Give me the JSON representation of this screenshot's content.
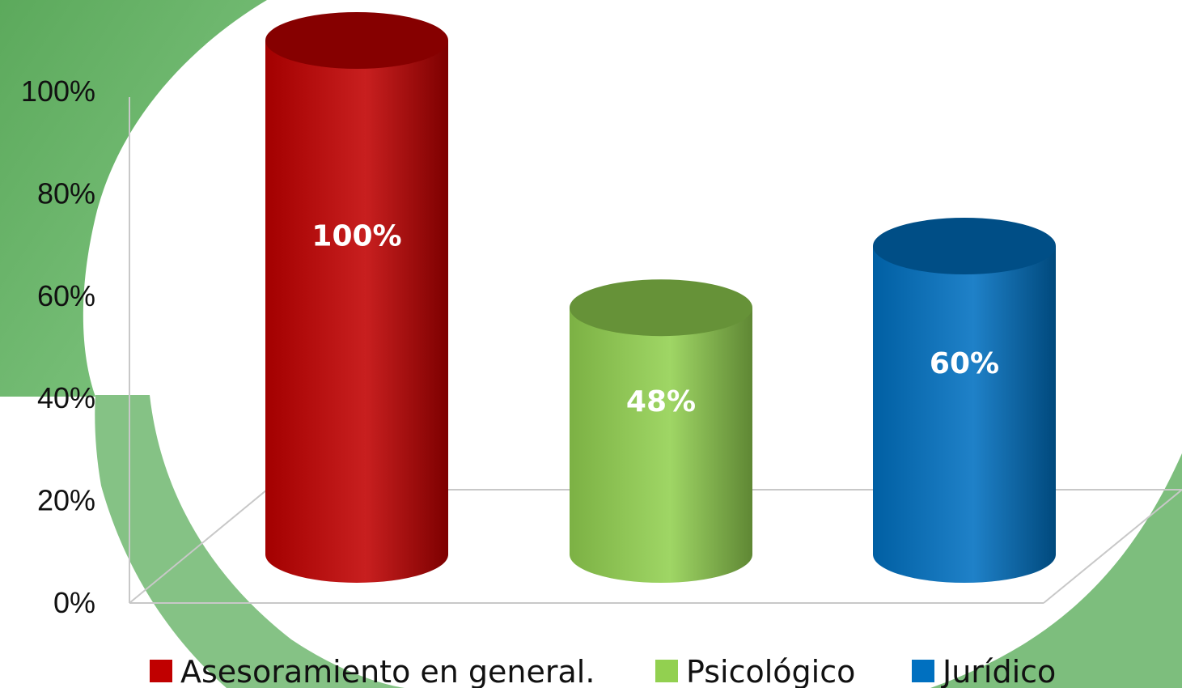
{
  "chart_data": {
    "type": "bar",
    "style": "3d-cylinder",
    "title": "",
    "xlabel": "",
    "ylabel": "",
    "ylim": [
      0,
      100
    ],
    "y_ticks": [
      "0%",
      "20%",
      "40%",
      "60%",
      "80%",
      "100%"
    ],
    "grid": false,
    "legend_position": "bottom",
    "series": [
      {
        "name": "Asesoramiento en general.",
        "value": 100,
        "data_label": "100%",
        "color": "#c00000"
      },
      {
        "name": "Psicológico",
        "value": 48,
        "data_label": "48%",
        "color": "#92d050"
      },
      {
        "name": "Jurídico",
        "value": 60,
        "data_label": "60%",
        "color": "#0070c0"
      }
    ]
  },
  "colors": {
    "background_ring": "#4aa04a"
  }
}
